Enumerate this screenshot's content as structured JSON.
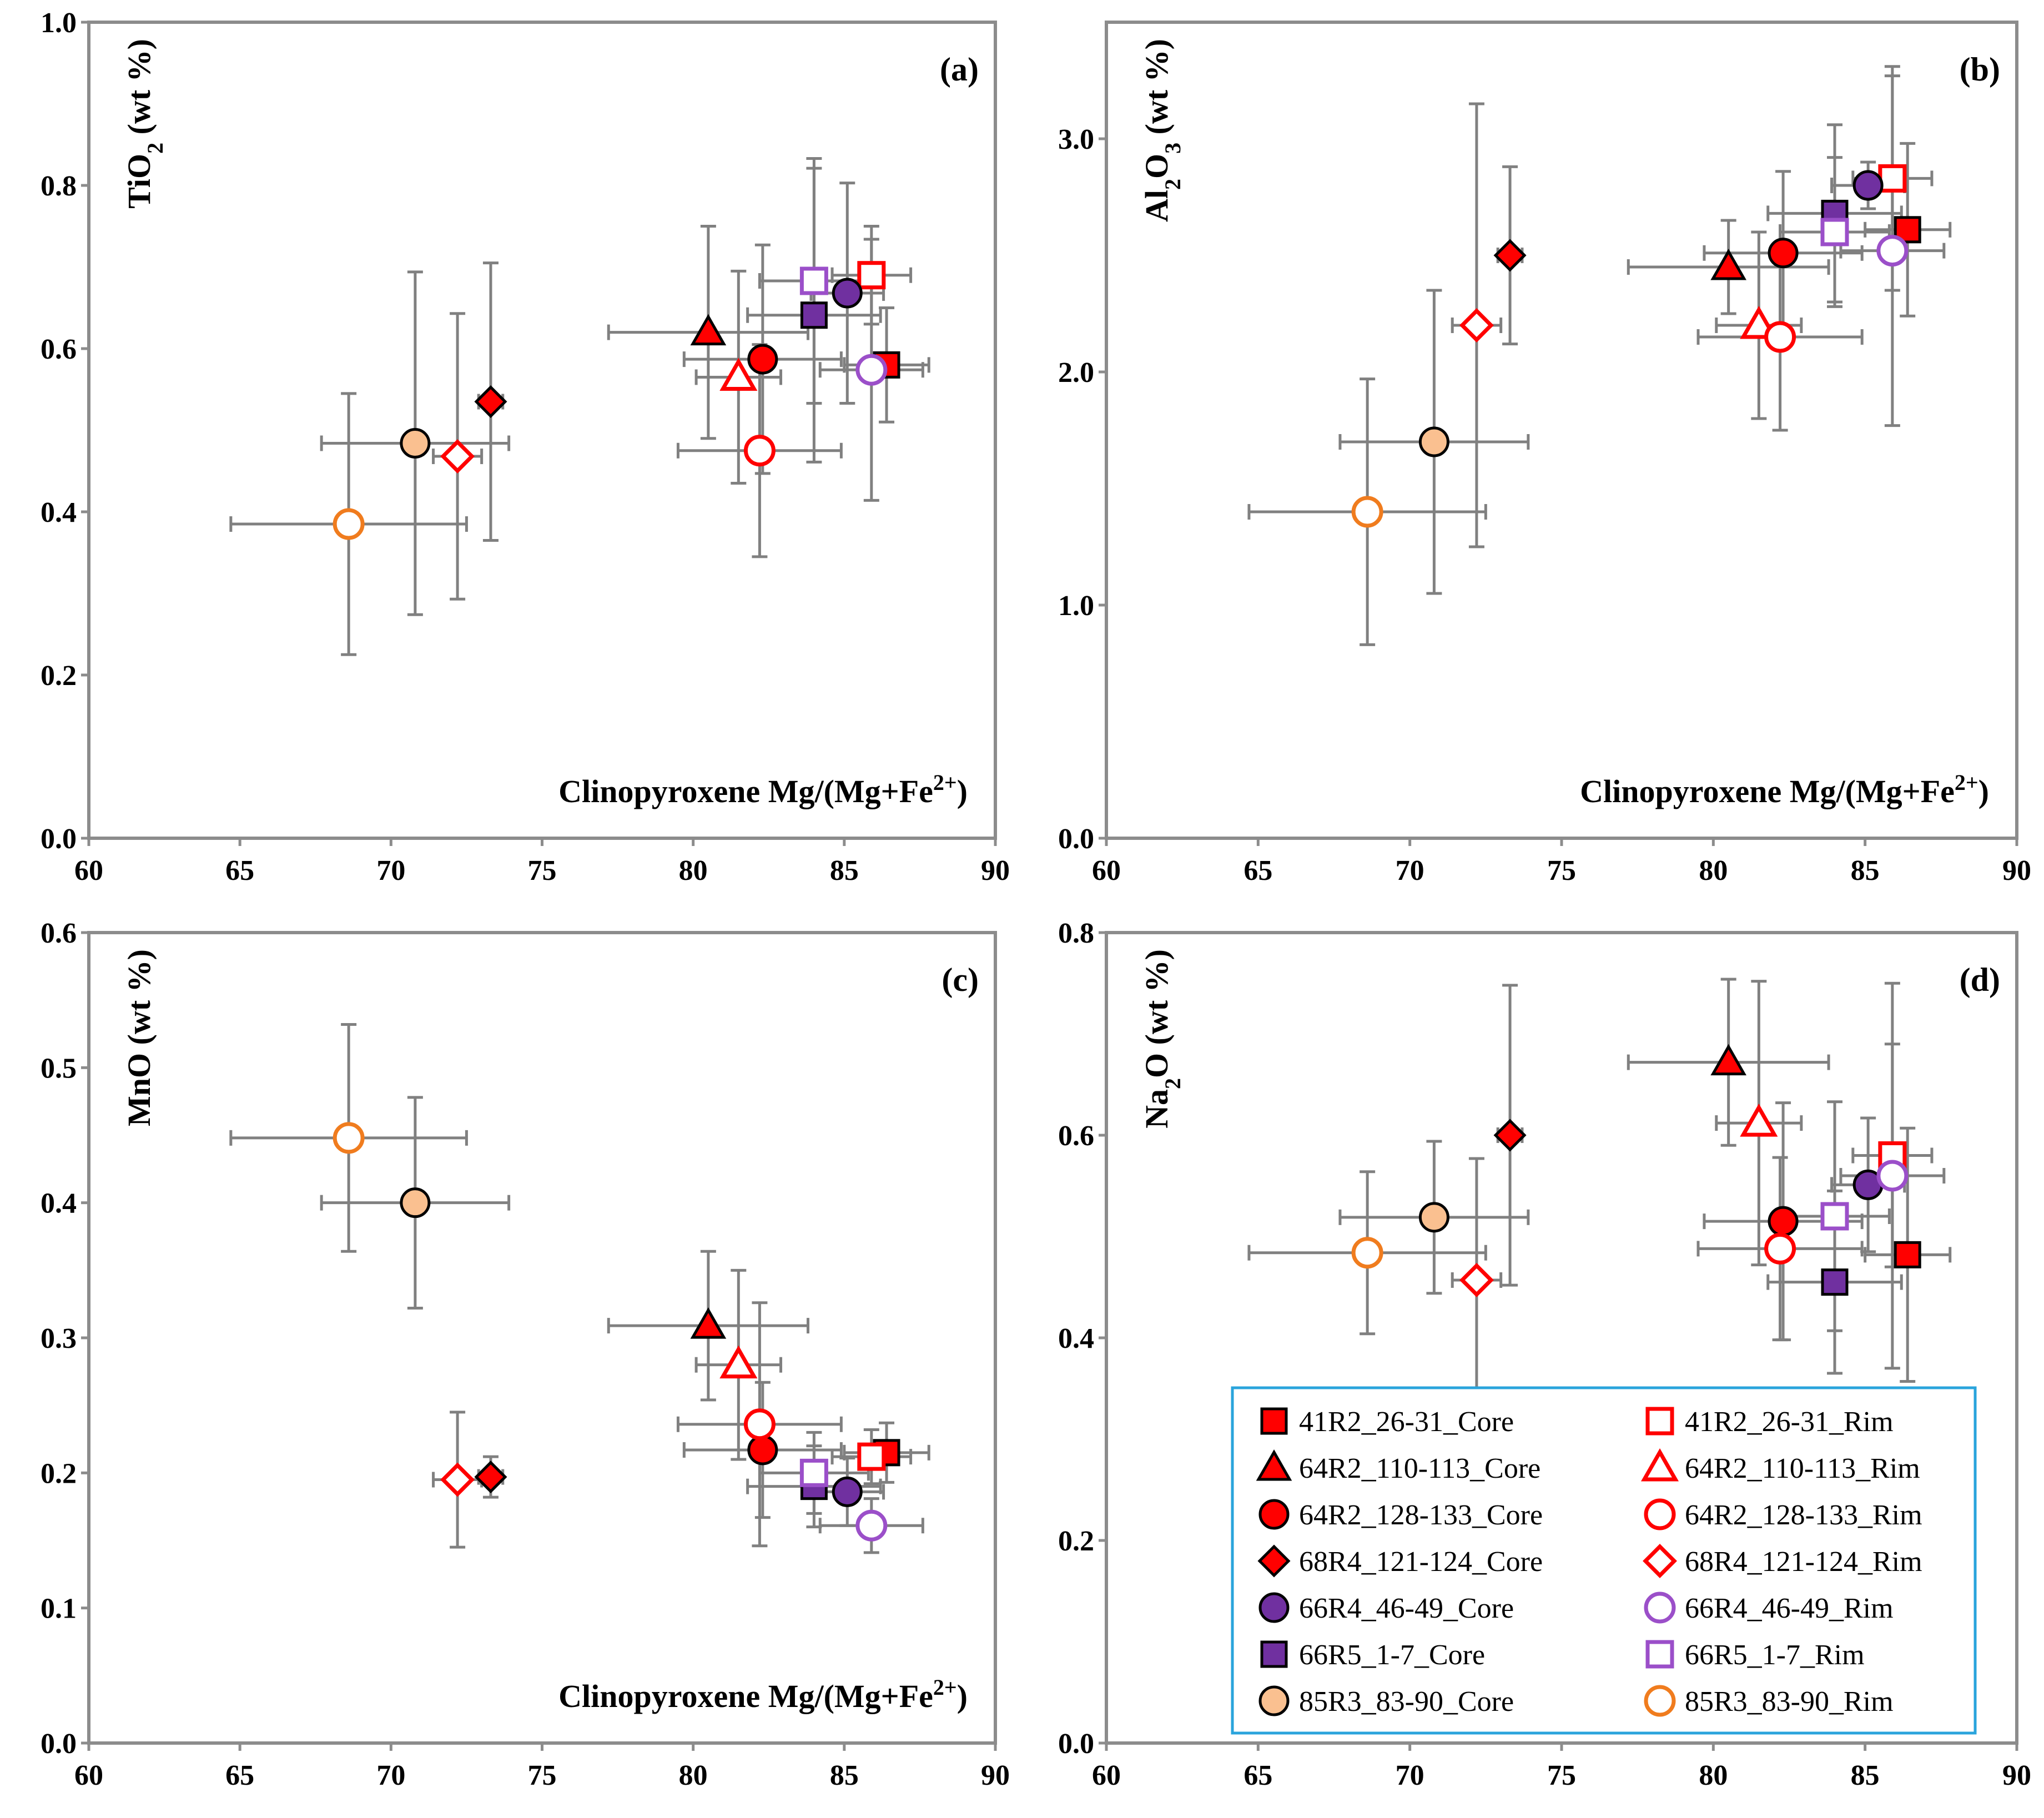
{
  "chart_data": {
    "type": "scatter",
    "shared_xlabel": {
      "main": "Clinopyroxene  Mg/(Mg+Fe",
      "sup": "2+",
      "end": ")"
    },
    "xlim": [
      60,
      90
    ],
    "xticks": [
      60,
      65,
      70,
      75,
      80,
      85,
      90
    ],
    "series_styles": [
      {
        "key": "s41c",
        "name": "41R2_26-31_Core",
        "marker": "square",
        "filled": true,
        "fill": "#ff0000",
        "stroke": "#000000"
      },
      {
        "key": "s41r",
        "name": "41R2_26-31_Rim",
        "marker": "square",
        "filled": false,
        "fill": "#ffffff",
        "stroke": "#ff0000"
      },
      {
        "key": "s110c",
        "name": "64R2_110-113_Core",
        "marker": "triangle",
        "filled": true,
        "fill": "#ff0000",
        "stroke": "#000000"
      },
      {
        "key": "s110r",
        "name": "64R2_110-113_Rim",
        "marker": "triangle",
        "filled": false,
        "fill": "#ffffff",
        "stroke": "#ff0000"
      },
      {
        "key": "s128c",
        "name": "64R2_128-133_Core",
        "marker": "circle",
        "filled": true,
        "fill": "#ff0000",
        "stroke": "#000000"
      },
      {
        "key": "s128r",
        "name": "64R2_128-133_Rim",
        "marker": "circle",
        "filled": false,
        "fill": "#ffffff",
        "stroke": "#ff0000"
      },
      {
        "key": "s68c",
        "name": "68R4_121-124_Core",
        "marker": "diamond",
        "filled": true,
        "fill": "#ff0000",
        "stroke": "#000000"
      },
      {
        "key": "s68r",
        "name": "68R4_121-124_Rim",
        "marker": "diamond",
        "filled": false,
        "fill": "#ffffff",
        "stroke": "#ff0000"
      },
      {
        "key": "s66c",
        "name": "66R4_46-49_Core",
        "marker": "circle",
        "filled": true,
        "fill": "#7030a0",
        "stroke": "#000000"
      },
      {
        "key": "s66r",
        "name": "66R4_46-49_Rim",
        "marker": "circle",
        "filled": false,
        "fill": "#ffffff",
        "stroke": "#9b4fc9"
      },
      {
        "key": "s665c",
        "name": "66R5_1-7_Core",
        "marker": "square",
        "filled": true,
        "fill": "#7030a0",
        "stroke": "#000000"
      },
      {
        "key": "s665r",
        "name": "66R5_1-7_Rim",
        "marker": "square",
        "filled": false,
        "fill": "#ffffff",
        "stroke": "#9b4fc9"
      },
      {
        "key": "s85c",
        "name": "85R3_83-90_Core",
        "marker": "circle",
        "filled": true,
        "fill": "#fac090",
        "stroke": "#000000"
      },
      {
        "key": "s85r",
        "name": "85R3_83-90_Rim",
        "marker": "circle",
        "filled": false,
        "fill": "#ffffff",
        "stroke": "#f07c1e"
      }
    ],
    "x_values": {
      "s41c": [
        86.4,
        1.4
      ],
      "s41r": [
        85.9,
        1.3
      ],
      "s110c": [
        80.5,
        3.3
      ],
      "s110r": [
        81.5,
        1.4
      ],
      "s128c": [
        82.3,
        2.6
      ],
      "s128r": [
        82.2,
        2.7
      ],
      "s68c": [
        73.3,
        0.4
      ],
      "s68r": [
        72.2,
        0.8
      ],
      "s66c": [
        85.1,
        1.2
      ],
      "s66r": [
        85.9,
        1.7
      ],
      "s665c": [
        84.0,
        2.2
      ],
      "s665r": [
        84.0,
        1.8
      ],
      "s85c": [
        70.8,
        3.1
      ],
      "s85r": [
        68.6,
        3.9
      ]
    },
    "panels": [
      {
        "id": "a",
        "panel_label": "(a)",
        "ylabel": {
          "pre": "TiO",
          "sub": "2",
          "post": " (wt %)"
        },
        "ylim": [
          0,
          1.0
        ],
        "yticks": [
          0.0,
          0.2,
          0.4,
          0.6,
          0.8,
          1.0
        ],
        "tick_decimals": 1,
        "top_tick_label": true,
        "show_xlabel": true,
        "points": {
          "s41c": [
            0.58,
            0.07
          ],
          "s41r": [
            0.69,
            0.06
          ],
          "s110c": [
            0.62,
            0.13
          ],
          "s110r": [
            0.565,
            0.13
          ],
          "s128c": [
            0.587,
            0.14
          ],
          "s128r": [
            0.475,
            0.13
          ],
          "s68c": [
            0.535,
            0.17
          ],
          "s68r": [
            0.468,
            0.175
          ],
          "s66c": [
            0.668,
            0.135
          ],
          "s66r": [
            0.574,
            0.16
          ],
          "s665c": [
            0.641,
            0.18
          ],
          "s665r": [
            0.683,
            0.15
          ],
          "s85c": [
            0.484,
            0.21
          ],
          "s85r": [
            0.385,
            0.16
          ]
        }
      },
      {
        "id": "b",
        "panel_label": "(b)",
        "ylabel": {
          "pre": "Al",
          "sub": "2",
          "post": "O",
          "sub2": "3",
          "post2": " (wt %)"
        },
        "ylim": [
          0,
          3.5
        ],
        "yticks": [
          0.0,
          1.0,
          2.0,
          3.0
        ],
        "tick_decimals": 1,
        "top_tick_label": false,
        "show_xlabel": true,
        "points": {
          "s41c": [
            2.61,
            0.37
          ],
          "s41r": [
            2.83,
            0.48
          ],
          "s110c": [
            2.45,
            0.2
          ],
          "s110r": [
            2.2,
            0.4
          ],
          "s128c": [
            2.51,
            0.35
          ],
          "s128r": [
            2.15,
            0.4
          ],
          "s68c": [
            2.5,
            0.38
          ],
          "s68r": [
            2.2,
            0.95
          ],
          "s66c": [
            2.8,
            0.1
          ],
          "s66r": [
            2.52,
            0.75
          ],
          "s665c": [
            2.68,
            0.38
          ],
          "s665r": [
            2.6,
            0.32
          ],
          "s85c": [
            1.7,
            0.65
          ],
          "s85r": [
            1.4,
            0.57
          ]
        }
      },
      {
        "id": "c",
        "panel_label": "(c)",
        "ylabel": {
          "pre": "MnO (wt %)"
        },
        "ylim": [
          0,
          0.6
        ],
        "yticks": [
          0.0,
          0.1,
          0.2,
          0.3,
          0.4,
          0.5,
          0.6
        ],
        "tick_decimals": 1,
        "top_tick_label": true,
        "show_xlabel": true,
        "points": {
          "s41c": [
            0.215,
            0.022
          ],
          "s41r": [
            0.212,
            0.02
          ],
          "s110c": [
            0.309,
            0.055
          ],
          "s110r": [
            0.28,
            0.07
          ],
          "s128c": [
            0.217,
            0.05
          ],
          "s128r": [
            0.236,
            0.09
          ],
          "s68c": [
            0.197,
            0.015
          ],
          "s68r": [
            0.195,
            0.05
          ],
          "s66c": [
            0.186,
            0.025
          ],
          "s66r": [
            0.161,
            0.02
          ],
          "s665c": [
            0.19,
            0.03
          ],
          "s665r": [
            0.2,
            0.03
          ],
          "s85c": [
            0.4,
            0.078
          ],
          "s85r": [
            0.448,
            0.084
          ]
        }
      },
      {
        "id": "d",
        "panel_label": "(d)",
        "ylabel": {
          "pre": "Na",
          "sub": "2",
          "post": "O (wt %)"
        },
        "ylim": [
          0,
          0.8
        ],
        "yticks": [
          0.0,
          0.2,
          0.4,
          0.6,
          0.8
        ],
        "tick_decimals": 1,
        "top_tick_label": true,
        "show_xlabel": false,
        "points": {
          "s41c": [
            0.482,
            0.125
          ],
          "s41r": [
            0.58,
            0.11
          ],
          "s110c": [
            0.672,
            0.082
          ],
          "s110r": [
            0.612,
            0.14
          ],
          "s128c": [
            0.515,
            0.117
          ],
          "s128r": [
            0.488,
            0.09
          ],
          "s68c": [
            0.6,
            0.148
          ],
          "s68r": [
            0.457,
            0.12
          ],
          "s66c": [
            0.551,
            0.066
          ],
          "s66r": [
            0.56,
            0.19
          ],
          "s665c": [
            0.455,
            0.09
          ],
          "s665r": [
            0.52,
            0.113
          ],
          "s85c": [
            0.519,
            0.075
          ],
          "s85r": [
            0.484,
            0.08
          ]
        }
      }
    ],
    "legend": {
      "placement": "bottom-right of panel (d)",
      "rows": [
        [
          "41R2_26-31_Core",
          "41R2_26-31_Rim"
        ],
        [
          "64R2_110-113_Core",
          "64R2_110-113_Rim"
        ],
        [
          "64R2_128-133_Core",
          "64R2_128-133_Rim"
        ],
        [
          "68R4_121-124_Core",
          "68R4_121-124_Rim"
        ],
        [
          "66R4_46-49_Core",
          "66R4_46-49_Rim"
        ],
        [
          "66R5_1-7_Core",
          "66R5_1-7_Rim"
        ],
        [
          "85R3_83-90_Core",
          "85R3_83-90_Rim"
        ]
      ]
    }
  }
}
